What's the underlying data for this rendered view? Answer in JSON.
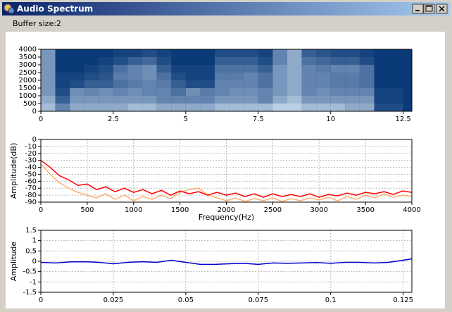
{
  "window": {
    "title": "Audio Spectrum"
  },
  "buffer_label": "Buffer size:2",
  "chart_data": [
    {
      "type": "heatmap",
      "xbins": [
        0,
        0.5,
        1,
        1.5,
        2,
        2.5,
        3,
        3.5,
        4,
        4.5,
        5,
        5.5,
        6,
        6.5,
        7,
        7.5,
        8,
        8.5,
        9,
        9.5,
        10,
        10.5,
        11,
        11.5,
        12,
        12.5
      ],
      "ybins": [
        0,
        500,
        1000,
        1500,
        2000,
        2500,
        3000,
        3500,
        4000
      ],
      "values": [
        [
          0.7,
          0.4,
          0.6,
          0.6,
          0.6,
          0.6,
          0.7,
          0.7,
          0.6,
          0.6,
          0.6,
          0.6,
          0.7,
          0.7,
          0.7,
          0.7,
          0.8,
          0.8,
          0.7,
          0.7,
          0.7,
          0.6,
          0.6,
          0.1,
          0.1
        ],
        [
          0.6,
          0.2,
          0.5,
          0.5,
          0.5,
          0.5,
          0.5,
          0.5,
          0.4,
          0.4,
          0.4,
          0.4,
          0.5,
          0.5,
          0.5,
          0.4,
          0.6,
          0.7,
          0.5,
          0.5,
          0.5,
          0.5,
          0.5,
          0.05,
          0.05
        ],
        [
          0.5,
          0.1,
          0.45,
          0.4,
          0.45,
          0.4,
          0.45,
          0.4,
          0.4,
          0.3,
          0.45,
          0.35,
          0.4,
          0.45,
          0.45,
          0.4,
          0.5,
          0.6,
          0.4,
          0.45,
          0.4,
          0.4,
          0.4,
          0.05,
          0.05
        ],
        [
          0.5,
          0.05,
          0.1,
          0.2,
          0.2,
          0.3,
          0.35,
          0.4,
          0.35,
          0.2,
          0.1,
          0.1,
          0.4,
          0.4,
          0.4,
          0.3,
          0.5,
          0.6,
          0.4,
          0.4,
          0.35,
          0.35,
          0.3,
          0,
          0
        ],
        [
          0.5,
          0.05,
          0.05,
          0.1,
          0.15,
          0.35,
          0.4,
          0.45,
          0.3,
          0.1,
          0.05,
          0.05,
          0.35,
          0.35,
          0.4,
          0.3,
          0.5,
          0.6,
          0.4,
          0.4,
          0.35,
          0.35,
          0.3,
          0,
          0
        ],
        [
          0.5,
          0,
          0,
          0.05,
          0.1,
          0.3,
          0.4,
          0.45,
          0.2,
          0.05,
          0.05,
          0.05,
          0.3,
          0.3,
          0.3,
          0.2,
          0.5,
          0.6,
          0.4,
          0.35,
          0.4,
          0.4,
          0.3,
          0,
          0
        ],
        [
          0.5,
          0,
          0,
          0,
          0.05,
          0.1,
          0.2,
          0.25,
          0.1,
          0,
          0,
          0,
          0.2,
          0.2,
          0.2,
          0.1,
          0.4,
          0.6,
          0.3,
          0.25,
          0.2,
          0.2,
          0.1,
          0,
          0
        ],
        [
          0.5,
          0,
          0,
          0,
          0,
          0.05,
          0.05,
          0.1,
          0.05,
          0,
          0,
          0,
          0.1,
          0.1,
          0.1,
          0.05,
          0.4,
          0.6,
          0.2,
          0.15,
          0.1,
          0.1,
          0.05,
          0,
          0
        ]
      ],
      "xlim": [
        0,
        12.8
      ],
      "xticks": [
        0,
        2.5,
        5,
        7.5,
        10,
        12.5
      ],
      "ylim": [
        0,
        4000
      ],
      "yticks": [
        0,
        500,
        1000,
        1500,
        2000,
        2500,
        3000,
        3500,
        4000
      ],
      "grid": false
    },
    {
      "type": "line",
      "x": [
        0,
        100,
        200,
        300,
        400,
        500,
        600,
        700,
        800,
        900,
        1000,
        1100,
        1200,
        1300,
        1400,
        1500,
        1600,
        1700,
        1800,
        1900,
        2000,
        2100,
        2200,
        2300,
        2400,
        2500,
        2600,
        2700,
        2800,
        2900,
        3000,
        3100,
        3200,
        3300,
        3400,
        3500,
        3600,
        3700,
        3800,
        3900,
        4000
      ],
      "series": [
        {
          "color": "#ffb070",
          "values": [
            -35,
            -50,
            -62,
            -70,
            -76,
            -80,
            -84,
            -78,
            -86,
            -80,
            -88,
            -82,
            -86,
            -80,
            -85,
            -76,
            -72,
            -70,
            -80,
            -84,
            -88,
            -84,
            -89,
            -85,
            -88,
            -84,
            -89,
            -85,
            -88,
            -84,
            -87,
            -83,
            -88,
            -82,
            -86,
            -80,
            -84,
            -78,
            -83,
            -80,
            -82
          ]
        },
        {
          "color": "#ff0000",
          "values": [
            -30,
            -40,
            -52,
            -58,
            -66,
            -64,
            -72,
            -68,
            -75,
            -70,
            -76,
            -72,
            -78,
            -73,
            -80,
            -74,
            -78,
            -75,
            -80,
            -76,
            -80,
            -77,
            -82,
            -78,
            -83,
            -78,
            -82,
            -79,
            -82,
            -78,
            -83,
            -79,
            -81,
            -77,
            -80,
            -76,
            -78,
            -75,
            -79,
            -74,
            -76
          ]
        }
      ],
      "xlabel": "Frequency(Hz)",
      "ylabel": "Amplitude(dB)",
      "xlim": [
        0,
        4000
      ],
      "xticks": [
        0,
        500,
        1000,
        1500,
        2000,
        2500,
        3000,
        3500,
        4000
      ],
      "ylim": [
        -90,
        0
      ],
      "yticks": [
        0,
        -10,
        -20,
        -30,
        -40,
        -50,
        -60,
        -70,
        -80,
        -90
      ],
      "grid": true
    },
    {
      "type": "line",
      "x": [
        0,
        0.005,
        0.01,
        0.015,
        0.02,
        0.025,
        0.03,
        0.035,
        0.04,
        0.045,
        0.05,
        0.055,
        0.06,
        0.065,
        0.07,
        0.075,
        0.08,
        0.085,
        0.09,
        0.095,
        0.1,
        0.105,
        0.11,
        0.115,
        0.12,
        0.125,
        0.128
      ],
      "series": [
        {
          "color": "#0000cc",
          "values": [
            -0.05,
            -0.08,
            -0.03,
            -0.02,
            -0.05,
            -0.12,
            -0.05,
            -0.02,
            -0.05,
            0.05,
            -0.05,
            -0.15,
            -0.15,
            -0.12,
            -0.1,
            -0.15,
            -0.08,
            -0.1,
            -0.08,
            -0.06,
            -0.1,
            -0.05,
            -0.05,
            -0.08,
            -0.05,
            0.05,
            0.12
          ]
        }
      ],
      "ylabel": "Amplitude",
      "xlim": [
        0,
        0.128
      ],
      "xticks": [
        0,
        0.025,
        0.05,
        0.075,
        0.1,
        0.125
      ],
      "ylim": [
        -1.5,
        1.5
      ],
      "yticks": [
        1.5,
        1,
        0.5,
        0,
        -0.5,
        -1,
        -1.5
      ],
      "grid": true
    }
  ]
}
